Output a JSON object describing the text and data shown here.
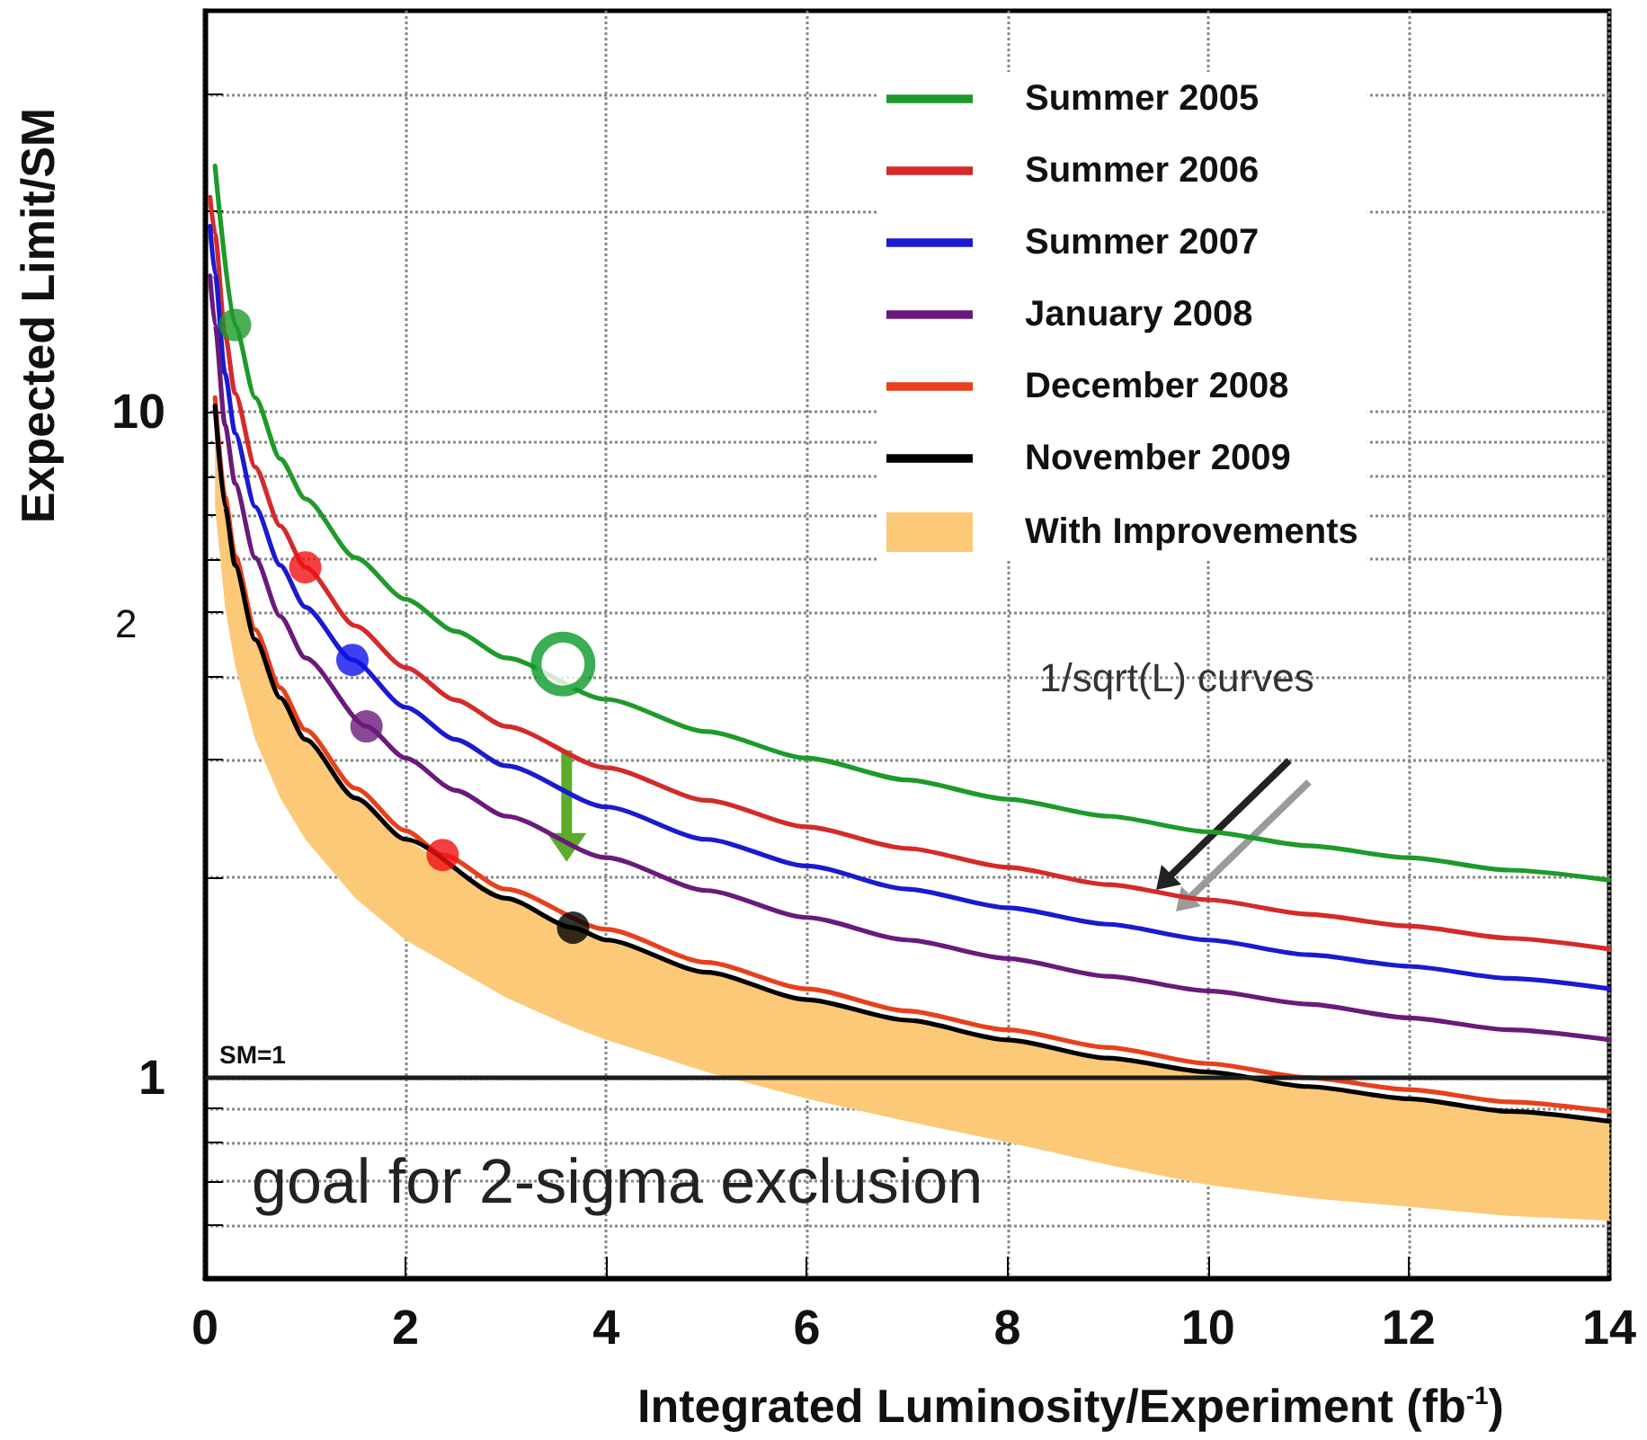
{
  "chart_data": {
    "type": "line",
    "xlabel": "Integrated Luminosity/Experiment (fb$^{-1}$)",
    "ylabel": "Expected Limit/SM",
    "xlim": [
      0,
      14
    ],
    "xticks": [
      0,
      2,
      4,
      6,
      8,
      10,
      12,
      14
    ],
    "ylim": [
      0.5,
      40
    ],
    "log": "y",
    "yticks": [
      {
        "value": 0.6,
        "label": null
      },
      {
        "value": 0.7,
        "label": null
      },
      {
        "value": 0.8,
        "label": null
      },
      {
        "value": 0.9,
        "label": null
      },
      1,
      {
        "value": 2,
        "label": null
      },
      {
        "value": 3,
        "label": null
      },
      {
        "value": 4,
        "label": null
      },
      {
        "value": 5,
        "label": null
      },
      {
        "value": 6,
        "label": null
      },
      {
        "value": 7,
        "label": null
      },
      {
        "value": 8,
        "label": null
      },
      {
        "value": 9,
        "label": null
      },
      10,
      {
        "value": 20,
        "label": null
      },
      {
        "value": 30,
        "label": null
      }
    ],
    "grid": true,
    "legend": "top right",
    "line_style": "solid",
    "series": [
      {
        "name": "Summer 2005",
        "color": "#1e9a2a",
        "x": [
          0.1,
          0.3,
          0.5,
          0.75,
          1,
          1.5,
          2,
          2.5,
          3,
          4,
          5,
          6,
          7,
          8,
          9,
          10,
          11,
          12,
          13,
          14
        ],
        "values": [
          23.4,
          13.5,
          10.5,
          8.5,
          7.4,
          6.04,
          5.23,
          4.68,
          4.27,
          3.7,
          3.31,
          3.02,
          2.8,
          2.62,
          2.47,
          2.34,
          2.23,
          2.14,
          2.05,
          1.98
        ]
      },
      {
        "name": "Summer 2006",
        "color": "#d42a2a",
        "x": [
          0.05,
          0.1,
          0.2,
          0.3,
          0.5,
          0.75,
          1,
          1.5,
          2,
          2.5,
          3,
          4,
          5,
          6,
          7,
          8,
          9,
          10,
          11,
          12,
          13,
          14
        ],
        "values": [
          21,
          18.5,
          13.06,
          10.66,
          8.26,
          6.74,
          5.84,
          4.77,
          4.13,
          3.69,
          3.37,
          2.92,
          2.61,
          2.38,
          2.21,
          2.07,
          1.95,
          1.85,
          1.76,
          1.69,
          1.62,
          1.56
        ]
      },
      {
        "name": "Summer 2007",
        "color": "#1a1ad0",
        "x": [
          0.05,
          0.1,
          0.2,
          0.3,
          0.5,
          0.75,
          1,
          1.47,
          2,
          2.5,
          3,
          4,
          5,
          6,
          7,
          8,
          9,
          10,
          11,
          12,
          13,
          14
        ],
        "values": [
          19,
          16.1,
          11.4,
          9.29,
          7.2,
          5.88,
          5.09,
          4.24,
          3.6,
          3.22,
          2.94,
          2.55,
          2.28,
          2.08,
          1.92,
          1.8,
          1.7,
          1.61,
          1.53,
          1.47,
          1.41,
          1.36
        ]
      },
      {
        "name": "January 2008",
        "color": "#6a1a7a",
        "x": [
          0.05,
          0.1,
          0.2,
          0.3,
          0.5,
          0.75,
          1,
          1.61,
          2,
          2.5,
          3,
          4,
          5,
          6,
          7,
          8,
          9,
          10,
          11,
          12,
          13,
          14
        ],
        "values": [
          16,
          13.5,
          9.55,
          7.8,
          6.04,
          4.93,
          4.27,
          3.37,
          3.02,
          2.7,
          2.47,
          2.14,
          1.91,
          1.74,
          1.61,
          1.51,
          1.42,
          1.35,
          1.29,
          1.23,
          1.18,
          1.14
        ]
      },
      {
        "name": "December 2008",
        "color": "#e8401c",
        "x": [
          0.1,
          0.2,
          0.3,
          0.5,
          0.75,
          1,
          1.5,
          2,
          2.37,
          3,
          4,
          5,
          6,
          7,
          8,
          9,
          10,
          11,
          12,
          13,
          14
        ],
        "values": [
          10.5,
          7.45,
          6.08,
          4.71,
          3.85,
          3.33,
          2.72,
          2.35,
          2.16,
          1.92,
          1.67,
          1.49,
          1.36,
          1.26,
          1.18,
          1.11,
          1.05,
          1.0,
          0.96,
          0.92,
          0.89
        ]
      },
      {
        "name": "November 2009",
        "color": "#000000",
        "x": [
          0.1,
          0.2,
          0.3,
          0.5,
          0.75,
          1,
          1.5,
          2,
          3,
          3.67,
          4,
          5,
          6,
          7,
          8,
          9,
          10,
          11,
          12,
          13,
          14
        ],
        "values": [
          10.2,
          7.2,
          5.88,
          4.55,
          3.72,
          3.22,
          2.63,
          2.28,
          1.86,
          1.68,
          1.61,
          1.44,
          1.31,
          1.22,
          1.14,
          1.07,
          1.02,
          0.97,
          0.93,
          0.89,
          0.86
        ]
      },
      {
        "name": "With Improvements",
        "type": "area",
        "color": "#fcc978",
        "x": [
          0.1,
          0.2,
          0.3,
          0.5,
          0.75,
          1,
          1.5,
          2,
          3,
          3.67,
          4,
          5,
          6,
          7,
          8,
          9,
          10,
          11,
          12,
          13,
          14
        ],
        "values": [
          null,
          null,
          null,
          null,
          null,
          null,
          null,
          null,
          null,
          null,
          null,
          null,
          null,
          null,
          null,
          null,
          null,
          null,
          null,
          null,
          null
        ],
        "upper": [
          10.2,
          7.2,
          5.88,
          4.55,
          3.72,
          3.22,
          2.63,
          2.28,
          1.86,
          1.68,
          1.61,
          1.44,
          1.31,
          1.22,
          1.14,
          1.07,
          1.02,
          0.97,
          0.93,
          0.89,
          0.86
        ],
        "lower": [
          7.2,
          5.1,
          4.16,
          3.22,
          2.63,
          2.28,
          1.86,
          1.61,
          1.32,
          1.19,
          1.14,
          1.02,
          0.93,
          0.86,
          0.8,
          0.74,
          0.69,
          0.66,
          0.64,
          0.62,
          0.61
        ]
      },
      {
        "type": "scatter",
        "marker": "circle",
        "x": [
          0.3,
          1.0,
          1.47,
          1.61,
          2.37,
          3.67
        ],
        "values": [
          13.5,
          5.84,
          4.24,
          3.37,
          2.16,
          1.68
        ],
        "colors": [
          "#1e9a2a",
          "#f01010",
          "#1010f0",
          "#6a1a7a",
          "#f01010",
          "#000000"
        ]
      },
      {
        "type": "scatter",
        "marker": "circle",
        "color": "#0a9a2a",
        "x": [
          3.57
        ],
        "values": [
          4.18
        ]
      }
    ],
    "ref_lines": [
      {
        "axis": "y",
        "value": 1,
        "label": "SM=1",
        "color": "#1c1c1c"
      }
    ],
    "annotations": [
      "2",
      "goal for 2-sigma exclusion",
      "1/sqrt(L) curves"
    ]
  }
}
